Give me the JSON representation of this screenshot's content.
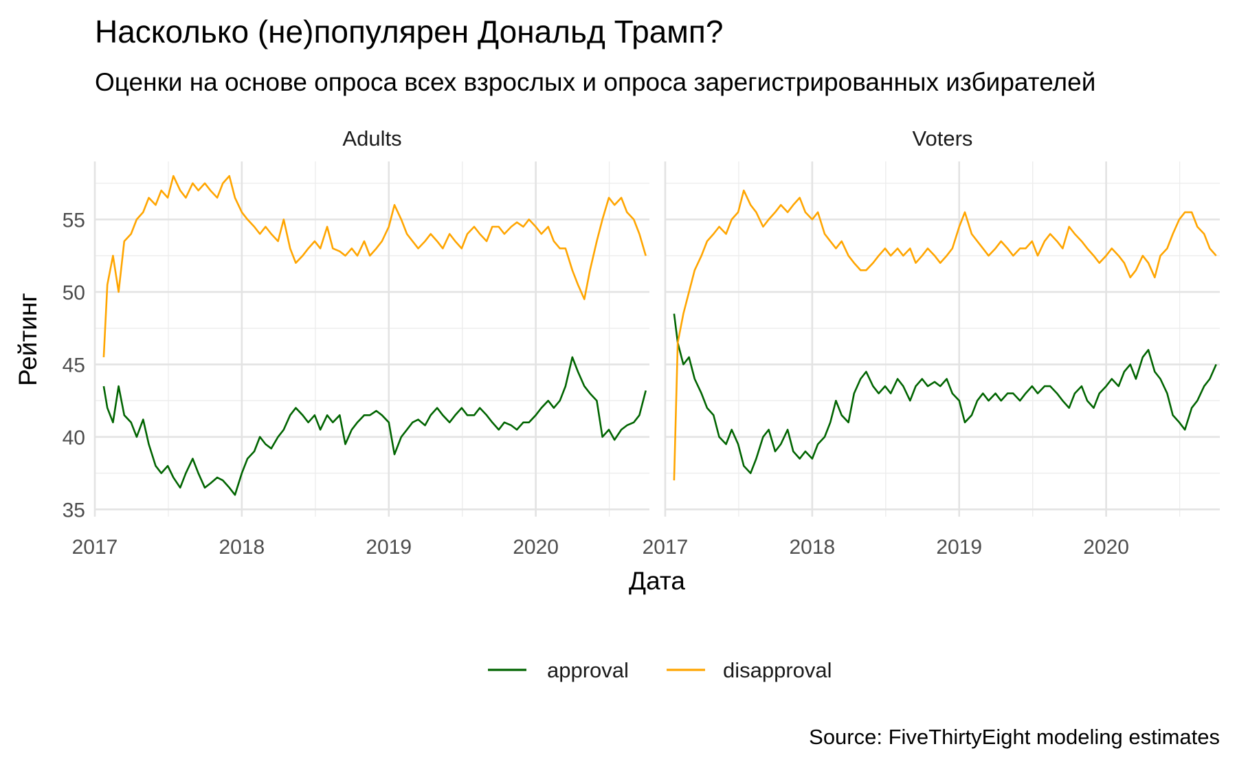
{
  "chart_data": {
    "type": "line",
    "title": "Насколько (не)популярен Дональд Трамп?",
    "subtitle": "Оценки на основе опроса всех взрослых и опроса зарегистрированных избирателей",
    "xlabel": "Дата",
    "ylabel": "Рейтинг",
    "caption": "Source: FiveThirtyEight modeling estimates",
    "ylim": [
      34.5,
      59
    ],
    "xlim": [
      "2017-01-01",
      "2020-10-10"
    ],
    "y_ticks": [
      35,
      40,
      45,
      50,
      55
    ],
    "x_ticks": [
      "2017",
      "2018",
      "2019",
      "2020"
    ],
    "grid": true,
    "legend_position": "bottom",
    "colors": {
      "approval": "#006400",
      "disappproval_placeholder": "",
      "disapproval": "#FFA500"
    },
    "facets": [
      {
        "name": "Adults",
        "series": [
          {
            "name": "approval",
            "x": [
              "2017-01-23",
              "2017-02-01",
              "2017-02-15",
              "2017-03-01",
              "2017-03-15",
              "2017-04-01",
              "2017-04-15",
              "2017-05-01",
              "2017-05-15",
              "2017-06-01",
              "2017-06-15",
              "2017-07-01",
              "2017-07-15",
              "2017-08-01",
              "2017-08-15",
              "2017-09-01",
              "2017-09-15",
              "2017-10-01",
              "2017-10-15",
              "2017-11-01",
              "2017-11-15",
              "2017-12-01",
              "2017-12-15",
              "2018-01-01",
              "2018-01-15",
              "2018-02-01",
              "2018-02-15",
              "2018-03-01",
              "2018-03-15",
              "2018-04-01",
              "2018-04-15",
              "2018-05-01",
              "2018-05-15",
              "2018-06-01",
              "2018-06-15",
              "2018-07-01",
              "2018-07-15",
              "2018-08-01",
              "2018-08-15",
              "2018-09-01",
              "2018-09-15",
              "2018-10-01",
              "2018-10-15",
              "2018-11-01",
              "2018-11-15",
              "2018-12-01",
              "2018-12-15",
              "2019-01-01",
              "2019-01-15",
              "2019-02-01",
              "2019-02-15",
              "2019-03-01",
              "2019-03-15",
              "2019-04-01",
              "2019-04-15",
              "2019-05-01",
              "2019-05-15",
              "2019-06-01",
              "2019-06-15",
              "2019-07-01",
              "2019-07-15",
              "2019-08-01",
              "2019-08-15",
              "2019-09-01",
              "2019-09-15",
              "2019-10-01",
              "2019-10-15",
              "2019-11-01",
              "2019-11-15",
              "2019-12-01",
              "2019-12-15",
              "2020-01-01",
              "2020-01-15",
              "2020-02-01",
              "2020-02-15",
              "2020-03-01",
              "2020-03-15",
              "2020-04-01",
              "2020-04-15",
              "2020-05-01",
              "2020-05-15",
              "2020-06-01",
              "2020-06-15",
              "2020-07-01",
              "2020-07-15",
              "2020-08-01",
              "2020-08-15",
              "2020-09-01",
              "2020-09-15",
              "2020-10-01"
            ],
            "y": [
              43.5,
              42.0,
              41.0,
              43.5,
              41.5,
              41.0,
              40.0,
              41.2,
              39.5,
              38.0,
              37.5,
              38.0,
              37.2,
              36.5,
              37.5,
              38.5,
              37.5,
              36.5,
              36.8,
              37.2,
              37.0,
              36.5,
              36.0,
              37.5,
              38.5,
              39.0,
              40.0,
              39.5,
              39.2,
              40.0,
              40.5,
              41.5,
              42.0,
              41.5,
              41.0,
              41.5,
              40.5,
              41.5,
              41.0,
              41.5,
              39.5,
              40.5,
              41.0,
              41.5,
              41.5,
              41.8,
              41.5,
              41.0,
              38.8,
              40.0,
              40.5,
              41.0,
              41.2,
              40.8,
              41.5,
              42.0,
              41.5,
              41.0,
              41.5,
              42.0,
              41.5,
              41.5,
              42.0,
              41.5,
              41.0,
              40.5,
              41.0,
              40.8,
              40.5,
              41.0,
              41.0,
              41.5,
              42.0,
              42.5,
              42.0,
              42.5,
              43.5,
              45.5,
              44.5,
              43.5,
              43.0,
              42.5,
              40.0,
              40.5,
              39.8,
              40.5,
              40.8,
              41.0,
              41.5,
              43.2
            ]
          },
          {
            "name": "disapproval",
            "x": [
              "2017-01-23",
              "2017-02-01",
              "2017-02-15",
              "2017-03-01",
              "2017-03-15",
              "2017-04-01",
              "2017-04-15",
              "2017-05-01",
              "2017-05-15",
              "2017-06-01",
              "2017-06-15",
              "2017-07-01",
              "2017-07-15",
              "2017-08-01",
              "2017-08-15",
              "2017-09-01",
              "2017-09-15",
              "2017-10-01",
              "2017-10-15",
              "2017-11-01",
              "2017-11-15",
              "2017-12-01",
              "2017-12-15",
              "2018-01-01",
              "2018-01-15",
              "2018-02-01",
              "2018-02-15",
              "2018-03-01",
              "2018-03-15",
              "2018-04-01",
              "2018-04-15",
              "2018-05-01",
              "2018-05-15",
              "2018-06-01",
              "2018-06-15",
              "2018-07-01",
              "2018-07-15",
              "2018-08-01",
              "2018-08-15",
              "2018-09-01",
              "2018-09-15",
              "2018-10-01",
              "2018-10-15",
              "2018-11-01",
              "2018-11-15",
              "2018-12-01",
              "2018-12-15",
              "2019-01-01",
              "2019-01-15",
              "2019-02-01",
              "2019-02-15",
              "2019-03-01",
              "2019-03-15",
              "2019-04-01",
              "2019-04-15",
              "2019-05-01",
              "2019-05-15",
              "2019-06-01",
              "2019-06-15",
              "2019-07-01",
              "2019-07-15",
              "2019-08-01",
              "2019-08-15",
              "2019-09-01",
              "2019-09-15",
              "2019-10-01",
              "2019-10-15",
              "2019-11-01",
              "2019-11-15",
              "2019-12-01",
              "2019-12-15",
              "2020-01-01",
              "2020-01-15",
              "2020-02-01",
              "2020-02-15",
              "2020-03-01",
              "2020-03-15",
              "2020-04-01",
              "2020-04-15",
              "2020-05-01",
              "2020-05-15",
              "2020-06-01",
              "2020-06-15",
              "2020-07-01",
              "2020-07-15",
              "2020-08-01",
              "2020-08-15",
              "2020-09-01",
              "2020-09-15",
              "2020-10-01"
            ],
            "y": [
              45.5,
              50.5,
              52.5,
              50.0,
              53.5,
              54.0,
              55.0,
              55.5,
              56.5,
              56.0,
              57.0,
              56.5,
              58.0,
              57.0,
              56.5,
              57.5,
              57.0,
              57.5,
              57.0,
              56.5,
              57.5,
              58.0,
              56.5,
              55.5,
              55.0,
              54.5,
              54.0,
              54.5,
              54.0,
              53.5,
              55.0,
              53.0,
              52.0,
              52.5,
              53.0,
              53.5,
              53.0,
              54.5,
              53.0,
              52.8,
              52.5,
              53.0,
              52.5,
              53.5,
              52.5,
              53.0,
              53.5,
              54.5,
              56.0,
              55.0,
              54.0,
              53.5,
              53.0,
              53.5,
              54.0,
              53.5,
              53.0,
              54.0,
              53.5,
              53.0,
              54.0,
              54.5,
              54.0,
              53.5,
              54.5,
              54.5,
              54.0,
              54.5,
              54.8,
              54.5,
              55.0,
              54.5,
              54.0,
              54.5,
              53.5,
              53.0,
              53.0,
              51.5,
              50.5,
              49.5,
              51.5,
              53.5,
              55.0,
              56.5,
              56.0,
              56.5,
              55.5,
              55.0,
              54.0,
              52.5
            ]
          }
        ]
      },
      {
        "name": "Voters",
        "series": [
          {
            "name": "approval",
            "x": [
              "2017-01-23",
              "2017-02-01",
              "2017-02-15",
              "2017-03-01",
              "2017-03-15",
              "2017-04-01",
              "2017-04-15",
              "2017-05-01",
              "2017-05-15",
              "2017-06-01",
              "2017-06-15",
              "2017-07-01",
              "2017-07-15",
              "2017-08-01",
              "2017-08-15",
              "2017-09-01",
              "2017-09-15",
              "2017-10-01",
              "2017-10-15",
              "2017-11-01",
              "2017-11-15",
              "2017-12-01",
              "2017-12-15",
              "2018-01-01",
              "2018-01-15",
              "2018-02-01",
              "2018-02-15",
              "2018-03-01",
              "2018-03-15",
              "2018-04-01",
              "2018-04-15",
              "2018-05-01",
              "2018-05-15",
              "2018-06-01",
              "2018-06-15",
              "2018-07-01",
              "2018-07-15",
              "2018-08-01",
              "2018-08-15",
              "2018-09-01",
              "2018-09-15",
              "2018-10-01",
              "2018-10-15",
              "2018-11-01",
              "2018-11-15",
              "2018-12-01",
              "2018-12-15",
              "2019-01-01",
              "2019-01-15",
              "2019-02-01",
              "2019-02-15",
              "2019-03-01",
              "2019-03-15",
              "2019-04-01",
              "2019-04-15",
              "2019-05-01",
              "2019-05-15",
              "2019-06-01",
              "2019-06-15",
              "2019-07-01",
              "2019-07-15",
              "2019-08-01",
              "2019-08-15",
              "2019-09-01",
              "2019-09-15",
              "2019-10-01",
              "2019-10-15",
              "2019-11-01",
              "2019-11-15",
              "2019-12-01",
              "2019-12-15",
              "2020-01-01",
              "2020-01-15",
              "2020-02-01",
              "2020-02-15",
              "2020-03-01",
              "2020-03-15",
              "2020-04-01",
              "2020-04-15",
              "2020-05-01",
              "2020-05-15",
              "2020-06-01",
              "2020-06-15",
              "2020-07-01",
              "2020-07-15",
              "2020-08-01",
              "2020-08-15",
              "2020-09-01",
              "2020-09-15",
              "2020-10-01"
            ],
            "y": [
              48.5,
              46.5,
              45.0,
              45.5,
              44.0,
              43.0,
              42.0,
              41.5,
              40.0,
              39.5,
              40.5,
              39.5,
              38.0,
              37.5,
              38.5,
              40.0,
              40.5,
              39.0,
              39.5,
              40.5,
              39.0,
              38.5,
              39.0,
              38.5,
              39.5,
              40.0,
              41.0,
              42.5,
              41.5,
              41.0,
              43.0,
              44.0,
              44.5,
              43.5,
              43.0,
              43.5,
              43.0,
              44.0,
              43.5,
              42.5,
              43.5,
              44.0,
              43.5,
              43.8,
              43.5,
              44.0,
              43.0,
              42.5,
              41.0,
              41.5,
              42.5,
              43.0,
              42.5,
              43.0,
              42.5,
              43.0,
              43.0,
              42.5,
              43.0,
              43.5,
              43.0,
              43.5,
              43.5,
              43.0,
              42.5,
              42.0,
              43.0,
              43.5,
              42.5,
              42.0,
              43.0,
              43.5,
              44.0,
              43.5,
              44.5,
              45.0,
              44.0,
              45.5,
              46.0,
              44.5,
              44.0,
              43.0,
              41.5,
              41.0,
              40.5,
              42.0,
              42.5,
              43.5,
              44.0,
              45.0
            ]
          },
          {
            "name": "disapproval",
            "x": [
              "2017-01-23",
              "2017-02-01",
              "2017-02-15",
              "2017-03-01",
              "2017-03-15",
              "2017-04-01",
              "2017-04-15",
              "2017-05-01",
              "2017-05-15",
              "2017-06-01",
              "2017-06-15",
              "2017-07-01",
              "2017-07-15",
              "2017-08-01",
              "2017-08-15",
              "2017-09-01",
              "2017-09-15",
              "2017-10-01",
              "2017-10-15",
              "2017-11-01",
              "2017-11-15",
              "2017-12-01",
              "2017-12-15",
              "2018-01-01",
              "2018-01-15",
              "2018-02-01",
              "2018-02-15",
              "2018-03-01",
              "2018-03-15",
              "2018-04-01",
              "2018-04-15",
              "2018-05-01",
              "2018-05-15",
              "2018-06-01",
              "2018-06-15",
              "2018-07-01",
              "2018-07-15",
              "2018-08-01",
              "2018-08-15",
              "2018-09-01",
              "2018-09-15",
              "2018-10-01",
              "2018-10-15",
              "2018-11-01",
              "2018-11-15",
              "2018-12-01",
              "2018-12-15",
              "2019-01-01",
              "2019-01-15",
              "2019-02-01",
              "2019-02-15",
              "2019-03-01",
              "2019-03-15",
              "2019-04-01",
              "2019-04-15",
              "2019-05-01",
              "2019-05-15",
              "2019-06-01",
              "2019-06-15",
              "2019-07-01",
              "2019-07-15",
              "2019-08-01",
              "2019-08-15",
              "2019-09-01",
              "2019-09-15",
              "2019-10-01",
              "2019-10-15",
              "2019-11-01",
              "2019-11-15",
              "2019-12-01",
              "2019-12-15",
              "2020-01-01",
              "2020-01-15",
              "2020-02-01",
              "2020-02-15",
              "2020-03-01",
              "2020-03-15",
              "2020-04-01",
              "2020-04-15",
              "2020-05-01",
              "2020-05-15",
              "2020-06-01",
              "2020-06-15",
              "2020-07-01",
              "2020-07-15",
              "2020-08-01",
              "2020-08-15",
              "2020-09-01",
              "2020-09-15",
              "2020-10-01"
            ],
            "y": [
              37.0,
              46.5,
              48.5,
              50.0,
              51.5,
              52.5,
              53.5,
              54.0,
              54.5,
              54.0,
              55.0,
              55.5,
              57.0,
              56.0,
              55.5,
              54.5,
              55.0,
              55.5,
              56.0,
              55.5,
              56.0,
              56.5,
              55.5,
              55.0,
              55.5,
              54.0,
              53.5,
              53.0,
              53.5,
              52.5,
              52.0,
              51.5,
              51.5,
              52.0,
              52.5,
              53.0,
              52.5,
              53.0,
              52.5,
              53.0,
              52.0,
              52.5,
              53.0,
              52.5,
              52.0,
              52.5,
              53.0,
              54.5,
              55.5,
              54.0,
              53.5,
              53.0,
              52.5,
              53.0,
              53.5,
              53.0,
              52.5,
              53.0,
              53.0,
              53.5,
              52.5,
              53.5,
              54.0,
              53.5,
              53.0,
              54.5,
              54.0,
              53.5,
              53.0,
              52.5,
              52.0,
              52.5,
              53.0,
              52.5,
              52.0,
              51.0,
              51.5,
              52.5,
              52.0,
              51.0,
              52.5,
              53.0,
              54.0,
              55.0,
              55.5,
              55.5,
              54.5,
              54.0,
              53.0,
              52.5
            ]
          }
        ]
      }
    ]
  }
}
